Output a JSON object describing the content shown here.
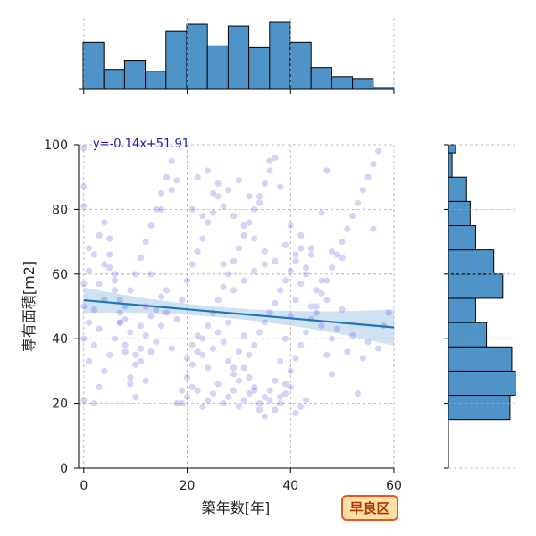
{
  "chart_data": {
    "type": "scatter",
    "xlabel": "築年数[年]",
    "ylabel": "専有面積[m2]",
    "xlim": [
      -1,
      60
    ],
    "ylim": [
      0,
      100
    ],
    "x_ticks": [
      0,
      20,
      40,
      60
    ],
    "y_ticks": [
      0,
      20,
      40,
      60,
      80,
      100
    ],
    "grid": true,
    "regression": {
      "slope": -0.14,
      "intercept": 51.91,
      "label": "y=-0.14x+51.91"
    },
    "badge": "早良区",
    "colors": {
      "points": "#3b3bd6",
      "regression": "#1f77b4",
      "band": "#a9c8e8",
      "hist": "#4f94c8",
      "badge_fill": "#fde0a8",
      "badge_border": "#e8581c"
    },
    "top_hist": {
      "bin_edges": [
        0,
        4,
        8,
        12,
        16,
        20,
        24,
        28,
        32,
        36,
        40,
        44,
        48,
        52,
        56,
        60
      ],
      "counts": [
        26,
        11,
        16,
        10,
        32,
        36,
        24,
        35,
        23,
        37,
        26,
        12,
        7,
        6,
        1
      ]
    },
    "right_hist": {
      "bin_edges": [
        15,
        22.5,
        30,
        37.5,
        45,
        52.5,
        60,
        67.5,
        75,
        82.5,
        90,
        97.5,
        100
      ],
      "counts": [
        34,
        37,
        35,
        21,
        15,
        30,
        25,
        15,
        12,
        10,
        2,
        4
      ]
    },
    "points": [
      [
        2,
        20
      ],
      [
        3,
        25
      ],
      [
        4,
        30
      ],
      [
        5,
        35
      ],
      [
        6,
        40
      ],
      [
        7,
        45
      ],
      [
        8,
        50
      ],
      [
        9,
        55
      ],
      [
        10,
        60
      ],
      [
        11,
        65
      ],
      [
        12,
        70
      ],
      [
        13,
        75
      ],
      [
        14,
        80
      ],
      [
        15,
        85
      ],
      [
        16,
        90
      ],
      [
        17,
        95
      ],
      [
        18,
        20
      ],
      [
        19,
        24
      ],
      [
        20,
        28
      ],
      [
        21,
        32
      ],
      [
        22,
        36
      ],
      [
        23,
        40
      ],
      [
        24,
        44
      ],
      [
        25,
        48
      ],
      [
        26,
        52
      ],
      [
        27,
        56
      ],
      [
        28,
        60
      ],
      [
        29,
        64
      ],
      [
        30,
        68
      ],
      [
        31,
        72
      ],
      [
        32,
        76
      ],
      [
        33,
        80
      ],
      [
        34,
        84
      ],
      [
        35,
        88
      ],
      [
        36,
        92
      ],
      [
        37,
        96
      ],
      [
        38,
        22
      ],
      [
        39,
        26
      ],
      [
        40,
        30
      ],
      [
        41,
        34
      ],
      [
        42,
        38
      ],
      [
        43,
        42
      ],
      [
        44,
        46
      ],
      [
        45,
        50
      ],
      [
        46,
        54
      ],
      [
        47,
        58
      ],
      [
        48,
        62
      ],
      [
        49,
        66
      ],
      [
        50,
        70
      ],
      [
        51,
        74
      ],
      [
        52,
        78
      ],
      [
        53,
        82
      ],
      [
        54,
        86
      ],
      [
        55,
        90
      ],
      [
        56,
        94
      ],
      [
        57,
        98
      ],
      [
        1,
        68
      ],
      [
        0,
        81
      ],
      [
        0,
        87
      ],
      [
        0,
        99
      ],
      [
        0,
        40
      ],
      [
        0,
        50
      ],
      [
        0,
        57
      ],
      [
        0,
        21
      ],
      [
        1,
        61
      ],
      [
        2,
        66
      ],
      [
        3,
        72
      ],
      [
        4,
        76
      ],
      [
        5,
        62
      ],
      [
        6,
        55
      ],
      [
        7,
        45
      ],
      [
        8,
        38
      ],
      [
        9,
        28
      ],
      [
        10,
        22
      ],
      [
        11,
        33
      ],
      [
        12,
        27
      ],
      [
        13,
        36
      ],
      [
        14,
        39
      ],
      [
        15,
        44
      ],
      [
        16,
        48
      ],
      [
        17,
        37
      ],
      [
        18,
        46
      ],
      [
        19,
        52
      ],
      [
        20,
        58
      ],
      [
        21,
        63
      ],
      [
        22,
        67
      ],
      [
        23,
        71
      ],
      [
        24,
        76
      ],
      [
        25,
        79
      ],
      [
        26,
        84
      ],
      [
        27,
        63
      ],
      [
        28,
        45
      ],
      [
        29,
        31
      ],
      [
        30,
        36
      ],
      [
        31,
        41
      ],
      [
        32,
        28
      ],
      [
        33,
        24
      ],
      [
        34,
        18
      ],
      [
        35,
        16
      ],
      [
        36,
        21
      ],
      [
        37,
        27
      ],
      [
        38,
        33
      ],
      [
        39,
        40
      ],
      [
        40,
        47
      ],
      [
        41,
        52
      ],
      [
        42,
        57
      ],
      [
        43,
        62
      ],
      [
        44,
        66
      ],
      [
        45,
        55
      ],
      [
        46,
        44
      ],
      [
        47,
        35
      ],
      [
        48,
        29
      ],
      [
        19,
        20
      ],
      [
        20,
        22
      ],
      [
        21,
        25
      ],
      [
        22,
        24
      ],
      [
        23,
        19
      ],
      [
        24,
        21
      ],
      [
        25,
        23
      ],
      [
        26,
        26
      ],
      [
        27,
        20
      ],
      [
        28,
        22
      ],
      [
        29,
        24
      ],
      [
        30,
        19
      ],
      [
        31,
        21
      ],
      [
        32,
        23
      ],
      [
        33,
        25
      ],
      [
        34,
        20
      ],
      [
        35,
        22
      ],
      [
        36,
        24
      ],
      [
        37,
        18
      ],
      [
        38,
        20
      ],
      [
        39,
        23
      ],
      [
        40,
        25
      ],
      [
        41,
        17
      ],
      [
        42,
        19
      ],
      [
        43,
        21
      ],
      [
        20,
        34
      ],
      [
        21,
        38
      ],
      [
        22,
        41
      ],
      [
        23,
        35
      ],
      [
        24,
        31
      ],
      [
        25,
        37
      ],
      [
        26,
        42
      ],
      [
        27,
        39
      ],
      [
        28,
        33
      ],
      [
        29,
        29
      ],
      [
        30,
        27
      ],
      [
        31,
        31
      ],
      [
        32,
        35
      ],
      [
        33,
        38
      ],
      [
        34,
        42
      ],
      [
        35,
        45
      ],
      [
        36,
        48
      ],
      [
        37,
        51
      ],
      [
        38,
        55
      ],
      [
        39,
        58
      ],
      [
        40,
        61
      ],
      [
        41,
        64
      ],
      [
        42,
        68
      ],
      [
        17,
        86
      ],
      [
        18,
        89
      ],
      [
        15,
        80
      ],
      [
        13,
        60
      ],
      [
        12,
        50
      ],
      [
        11,
        44
      ],
      [
        10,
        32
      ],
      [
        9,
        26
      ],
      [
        8,
        36
      ],
      [
        7,
        48
      ],
      [
        6,
        58
      ],
      [
        5,
        66
      ],
      [
        4,
        52
      ],
      [
        3,
        43
      ],
      [
        2,
        38
      ],
      [
        1,
        33
      ],
      [
        16,
        55
      ],
      [
        15,
        53
      ],
      [
        14,
        49
      ],
      [
        13,
        47
      ],
      [
        12,
        41
      ],
      [
        11,
        37
      ],
      [
        10,
        35
      ],
      [
        9,
        42
      ],
      [
        8,
        46
      ],
      [
        7,
        52
      ],
      [
        6,
        60
      ],
      [
        5,
        71
      ],
      [
        4,
        63
      ],
      [
        3,
        57
      ],
      [
        2,
        49
      ],
      [
        1,
        45
      ],
      [
        44,
        50
      ],
      [
        45,
        48
      ],
      [
        46,
        58
      ],
      [
        47,
        52
      ],
      [
        48,
        40
      ],
      [
        49,
        43
      ],
      [
        50,
        49
      ],
      [
        51,
        36
      ],
      [
        52,
        41
      ],
      [
        53,
        23
      ],
      [
        54,
        34
      ],
      [
        55,
        39
      ],
      [
        56,
        74
      ],
      [
        57,
        37
      ],
      [
        58,
        44
      ],
      [
        59,
        48
      ],
      [
        22,
        90
      ],
      [
        24,
        92
      ],
      [
        26,
        88
      ],
      [
        28,
        86
      ],
      [
        30,
        89
      ],
      [
        32,
        84
      ],
      [
        34,
        82
      ],
      [
        36,
        95
      ],
      [
        38,
        87
      ],
      [
        40,
        75
      ],
      [
        42,
        72
      ],
      [
        44,
        68
      ],
      [
        46,
        79
      ],
      [
        48,
        67
      ],
      [
        50,
        65
      ],
      [
        47,
        92
      ],
      [
        21,
        80
      ],
      [
        23,
        78
      ],
      [
        25,
        85
      ],
      [
        27,
        81
      ],
      [
        29,
        78
      ],
      [
        31,
        75
      ],
      [
        33,
        71
      ],
      [
        35,
        67
      ],
      [
        37,
        64
      ],
      [
        39,
        69
      ],
      [
        41,
        66
      ],
      [
        43,
        60
      ],
      [
        29,
        55
      ],
      [
        31,
        58
      ],
      [
        33,
        61
      ],
      [
        35,
        63
      ]
    ]
  }
}
